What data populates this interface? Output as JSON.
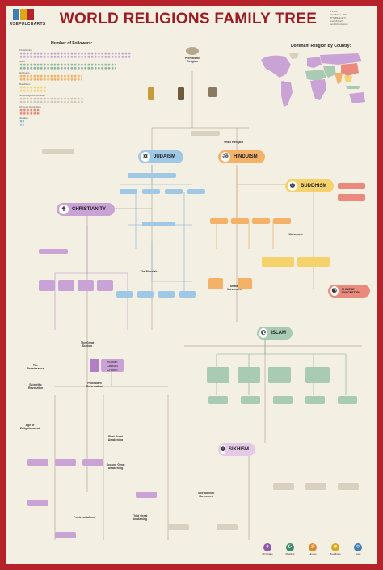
{
  "header": {
    "title": "WORLD RELIGIONS FAMILY TREE",
    "brand": "USEFULCHARTS",
    "credits": [
      "© 2020",
      "Matt Baker, PhD",
      "BTN Biblical Tr.",
      "UsefulCharts",
      "usefulcharts.com"
    ]
  },
  "followers": {
    "heading": "Number of Followers:",
    "rows": [
      {
        "name": "Christianity",
        "color": "#c9a3d6"
      },
      {
        "name": "Islam",
        "color": "#8fb8a0"
      },
      {
        "name": "Hinduism",
        "color": "#f0b46a"
      },
      {
        "name": "Buddhism",
        "color": "#f3d56b"
      },
      {
        "name": "Non-Religious / Atheism",
        "color": "#cfc8b6"
      },
      {
        "name": "Chinese Syncretism",
        "color": "#e58b7b"
      },
      {
        "name": "Judaism",
        "color": "#8fbcd9"
      }
    ],
    "legend": [
      "Millions",
      "Billion",
      "Other Religions"
    ]
  },
  "map": {
    "heading": "Dominant Religion By Country:"
  },
  "majors": {
    "judaism": "JUDAISM",
    "hinduism": "HINDUISM",
    "buddhism": "BUDDHISM",
    "christianity": "CHRISTIANITY",
    "chinese": "CHINESE SYNCRETISM",
    "islam": "ISLAM",
    "sikhism": "SIKHISM",
    "catholic": "Roman Catholic Church"
  },
  "eras": {
    "renaissance": "The Renaissance",
    "scientific": "Scientific Revolution",
    "protestant": "Protestant Reformation",
    "enlightenment": "Age of Enlightenment",
    "awakening1": "First Great Awakening",
    "awakening2": "Second Great Awakening",
    "awakening3": "Third Great Awakening",
    "pentecostal": "Pentecostalism",
    "spiritualism": "Spiritualism Movement",
    "messiah": "The Messiah",
    "great_schism": "The Great Schism",
    "shakti": "Shakti Movement",
    "mahayana": "Mahayana",
    "vedic": "Vedic Religion",
    "proto": "Prehistoric Religion"
  },
  "bottom_legend": [
    {
      "name": "Christians",
      "color": "#8e5aa8",
      "sym": "✝"
    },
    {
      "name": "Muslims",
      "color": "#3e8a6a",
      "sym": "☪"
    },
    {
      "name": "Hindus",
      "color": "#e08a2c",
      "sym": "ॐ"
    },
    {
      "name": "Buddhists",
      "color": "#d9a91a",
      "sym": "☸"
    },
    {
      "name": "Jews",
      "color": "#3f7fb3",
      "sym": "✡"
    }
  ],
  "colors": {
    "christian": "#c9a3d6",
    "jewish": "#9fc8e6",
    "hindu": "#f3b267",
    "buddhist": "#f5d26c",
    "islam": "#a9cbb4",
    "chinese": "#e98a7c",
    "sikh": "#e4c9e8",
    "neutral": "#d8d1c0"
  }
}
